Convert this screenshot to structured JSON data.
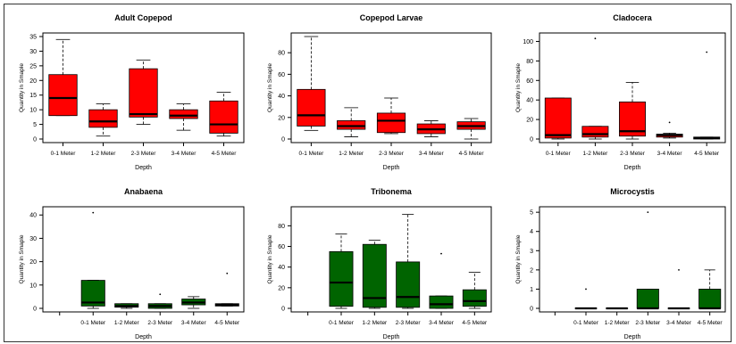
{
  "figure": {
    "xlabel": "Depth",
    "ylabel": "Quantity in Smaple"
  },
  "chart_data": [
    {
      "type": "boxplot",
      "title": "Adult Copepod",
      "categories": [
        "0-1 Meter",
        "1-2 Meter",
        "2-3 Meter",
        "3-4 Meter",
        "4-5 Meter"
      ],
      "color": "#ff0000",
      "xlabel": "Depth",
      "ylabel": "Quantity in Smaple",
      "ylim": [
        0,
        35
      ],
      "yticks": [
        0,
        5,
        10,
        15,
        20,
        25,
        30,
        35
      ],
      "boxes": [
        {
          "whisker_low": 8,
          "q1": 8,
          "median": 14,
          "q3": 22,
          "whisker_high": 34,
          "outliers": []
        },
        {
          "whisker_low": 1,
          "q1": 4,
          "median": 6,
          "q3": 10,
          "whisker_high": 12,
          "outliers": []
        },
        {
          "whisker_low": 5,
          "q1": 7.5,
          "median": 8.5,
          "q3": 24,
          "whisker_high": 27,
          "outliers": []
        },
        {
          "whisker_low": 3,
          "q1": 7,
          "median": 8,
          "q3": 10,
          "whisker_high": 12,
          "outliers": []
        },
        {
          "whisker_low": 1,
          "q1": 2,
          "median": 5,
          "q3": 13,
          "whisker_high": 16,
          "outliers": []
        }
      ]
    },
    {
      "type": "boxplot",
      "title": "Copepod Larvae",
      "categories": [
        "0-1 Meter",
        "1-2 Meter",
        "2-3 Meter",
        "3-4 Meter",
        "4-5 Meter"
      ],
      "color": "#ff0000",
      "xlabel": "Depth",
      "ylabel": "Quantity in Smaple",
      "ylim": [
        0,
        95
      ],
      "yticks": [
        0,
        20,
        40,
        60,
        80
      ],
      "boxes": [
        {
          "whisker_low": 8,
          "q1": 12,
          "median": 22,
          "q3": 46,
          "whisker_high": 95,
          "outliers": []
        },
        {
          "whisker_low": 2,
          "q1": 9,
          "median": 12,
          "q3": 17,
          "whisker_high": 29,
          "outliers": []
        },
        {
          "whisker_low": 5,
          "q1": 6,
          "median": 17,
          "q3": 24,
          "whisker_high": 38,
          "outliers": []
        },
        {
          "whisker_low": 2,
          "q1": 5,
          "median": 9,
          "q3": 14,
          "whisker_high": 17,
          "outliers": []
        },
        {
          "whisker_low": 0,
          "q1": 9,
          "median": 12,
          "q3": 16,
          "whisker_high": 19,
          "outliers": []
        }
      ]
    },
    {
      "type": "boxplot",
      "title": "Cladocera",
      "categories": [
        "0-1 Meter",
        "1-2 Meter",
        "2-3 Meter",
        "3-4 Meter",
        "4-5 Meter"
      ],
      "color": "#ff0000",
      "xlabel": "Depth",
      "ylabel": "Quantity in Smaple",
      "ylim": [
        0,
        105
      ],
      "yticks": [
        0,
        20,
        40,
        60,
        80,
        100
      ],
      "boxes": [
        {
          "whisker_low": 0,
          "q1": 1,
          "median": 4,
          "q3": 42,
          "whisker_high": 42,
          "outliers": []
        },
        {
          "whisker_low": 0,
          "q1": 2,
          "median": 5,
          "q3": 13,
          "whisker_high": 13,
          "outliers": [
            103
          ]
        },
        {
          "whisker_low": 0,
          "q1": 3,
          "median": 8,
          "q3": 38,
          "whisker_high": 58,
          "outliers": []
        },
        {
          "whisker_low": 1,
          "q1": 2,
          "median": 4,
          "q3": 5,
          "whisker_high": 6,
          "outliers": [
            17
          ]
        },
        {
          "whisker_low": 0,
          "q1": 0,
          "median": 1,
          "q3": 2,
          "whisker_high": 2,
          "outliers": [
            89
          ]
        }
      ]
    },
    {
      "type": "boxplot",
      "title": "Anabaena",
      "categories": [
        "",
        "0-1 Meter",
        "1-2 Meter",
        "2-3 Meter",
        "3-4 Meter",
        "4-5 Meter"
      ],
      "color": "#006400",
      "xlabel": "Depth",
      "ylabel": "Quantity in Smaple",
      "ylim": [
        0,
        42
      ],
      "yticks": [
        0,
        10,
        20,
        30,
        40
      ],
      "boxes": [
        null,
        {
          "whisker_low": 0,
          "q1": 1,
          "median": 2.5,
          "q3": 12,
          "whisker_high": 12,
          "outliers": [
            41
          ]
        },
        {
          "whisker_low": 0,
          "q1": 0.5,
          "median": 1,
          "q3": 2,
          "whisker_high": 2,
          "outliers": []
        },
        {
          "whisker_low": 0,
          "q1": 0,
          "median": 1,
          "q3": 2,
          "whisker_high": 2,
          "outliers": [
            6
          ]
        },
        {
          "whisker_low": 0,
          "q1": 1.5,
          "median": 2.5,
          "q3": 4,
          "whisker_high": 5,
          "outliers": []
        },
        {
          "whisker_low": 1,
          "q1": 1,
          "median": 1.5,
          "q3": 2,
          "whisker_high": 2,
          "outliers": [
            15
          ]
        }
      ]
    },
    {
      "type": "boxplot",
      "title": "Tribonema",
      "categories": [
        "",
        "0-1 Meter",
        "1-2 Meter",
        "2-3 Meter",
        "3-4 Meter",
        "4-5 Meter"
      ],
      "color": "#006400",
      "xlabel": "Depth",
      "ylabel": "Quantity in Smaple",
      "ylim": [
        0,
        95
      ],
      "yticks": [
        0,
        20,
        40,
        60,
        80
      ],
      "boxes": [
        null,
        {
          "whisker_low": 0,
          "q1": 2,
          "median": 25,
          "q3": 55,
          "whisker_high": 72,
          "outliers": []
        },
        {
          "whisker_low": 0,
          "q1": 1,
          "median": 10,
          "q3": 62,
          "whisker_high": 66,
          "outliers": []
        },
        {
          "whisker_low": 0,
          "q1": 1,
          "median": 11,
          "q3": 45,
          "whisker_high": 91,
          "outliers": []
        },
        {
          "whisker_low": 0,
          "q1": 0,
          "median": 4,
          "q3": 12,
          "whisker_high": 12,
          "outliers": [
            53
          ]
        },
        {
          "whisker_low": 0,
          "q1": 2,
          "median": 7,
          "q3": 18,
          "whisker_high": 35,
          "outliers": []
        }
      ]
    },
    {
      "type": "boxplot",
      "title": "Microcystis",
      "categories": [
        "",
        "0-1 Meter",
        "1-2 Meter",
        "2-3 Meter",
        "3-4 Meter",
        "4-5 Meter"
      ],
      "color": "#006400",
      "xlabel": "Depth",
      "ylabel": "Quantity in Smaple",
      "ylim": [
        0,
        5.1
      ],
      "yticks": [
        0,
        1,
        2,
        3,
        4,
        5
      ],
      "boxes": [
        null,
        {
          "whisker_low": 0,
          "q1": 0,
          "median": 0,
          "q3": 0,
          "whisker_high": 0,
          "outliers": [
            1
          ]
        },
        {
          "whisker_low": 0,
          "q1": 0,
          "median": 0,
          "q3": 0,
          "whisker_high": 0,
          "outliers": []
        },
        {
          "whisker_low": 0,
          "q1": 0,
          "median": 0,
          "q3": 1,
          "whisker_high": 1,
          "outliers": [
            5
          ]
        },
        {
          "whisker_low": 0,
          "q1": 0,
          "median": 0,
          "q3": 0,
          "whisker_high": 0,
          "outliers": [
            2
          ]
        },
        {
          "whisker_low": 0,
          "q1": 0,
          "median": 0,
          "q3": 1,
          "whisker_high": 2,
          "outliers": []
        }
      ]
    }
  ]
}
